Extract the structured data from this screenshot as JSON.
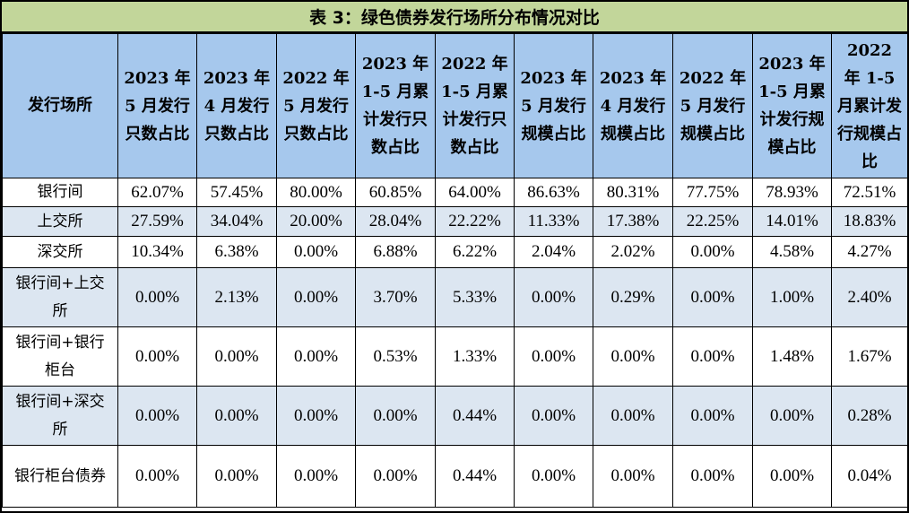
{
  "title": "表 3：绿色债券发行场所分布情况对比",
  "columns": [
    "发行场所",
    "2023 年 5 月发行只数占比",
    "2023 年 4 月发行只数占比",
    "2022 年 5 月发行只数占比",
    "2023 年 1-5 月累计发行只数占比",
    "2022 年 1-5 月累计发行只数占比",
    "2023 年 5 月发行规模占比",
    "2023 年 4 月发行规模占比",
    "2022 年 5 月发行规模占比",
    "2023 年 1-5 月累计发行规模占比",
    "2022 年 1-5 月累计发行规模占比"
  ],
  "rows": [
    {
      "venue": "银行间",
      "values": [
        "62.07%",
        "57.45%",
        "80.00%",
        "60.85%",
        "64.00%",
        "86.63%",
        "80.31%",
        "77.75%",
        "78.93%",
        "72.51%"
      ]
    },
    {
      "venue": "上交所",
      "values": [
        "27.59%",
        "34.04%",
        "20.00%",
        "28.04%",
        "22.22%",
        "11.33%",
        "17.38%",
        "22.25%",
        "14.01%",
        "18.83%"
      ]
    },
    {
      "venue": "深交所",
      "values": [
        "10.34%",
        "6.38%",
        "0.00%",
        "6.88%",
        "6.22%",
        "2.04%",
        "2.02%",
        "0.00%",
        "4.58%",
        "4.27%"
      ]
    },
    {
      "venue": "银行间+上交所",
      "values": [
        "0.00%",
        "2.13%",
        "0.00%",
        "3.70%",
        "5.33%",
        "0.00%",
        "0.29%",
        "0.00%",
        "1.00%",
        "2.40%"
      ]
    },
    {
      "venue": "银行间+银行柜台",
      "values": [
        "0.00%",
        "0.00%",
        "0.00%",
        "0.53%",
        "1.33%",
        "0.00%",
        "0.00%",
        "0.00%",
        "1.48%",
        "1.67%"
      ]
    },
    {
      "venue": "银行间+深交所",
      "values": [
        "0.00%",
        "0.00%",
        "0.00%",
        "0.00%",
        "0.44%",
        "0.00%",
        "0.00%",
        "0.00%",
        "0.00%",
        "0.28%"
      ]
    },
    {
      "venue": "银行柜台债券",
      "values": [
        "0.00%",
        "0.00%",
        "0.00%",
        "0.00%",
        "0.44%",
        "0.00%",
        "0.00%",
        "0.00%",
        "0.00%",
        "0.04%"
      ]
    }
  ],
  "colors": {
    "title_bg": "#c2d69a",
    "header_bg": "#a6c8ed",
    "row_alt_bg": "#dce6f1",
    "row_bg": "#ffffff"
  }
}
